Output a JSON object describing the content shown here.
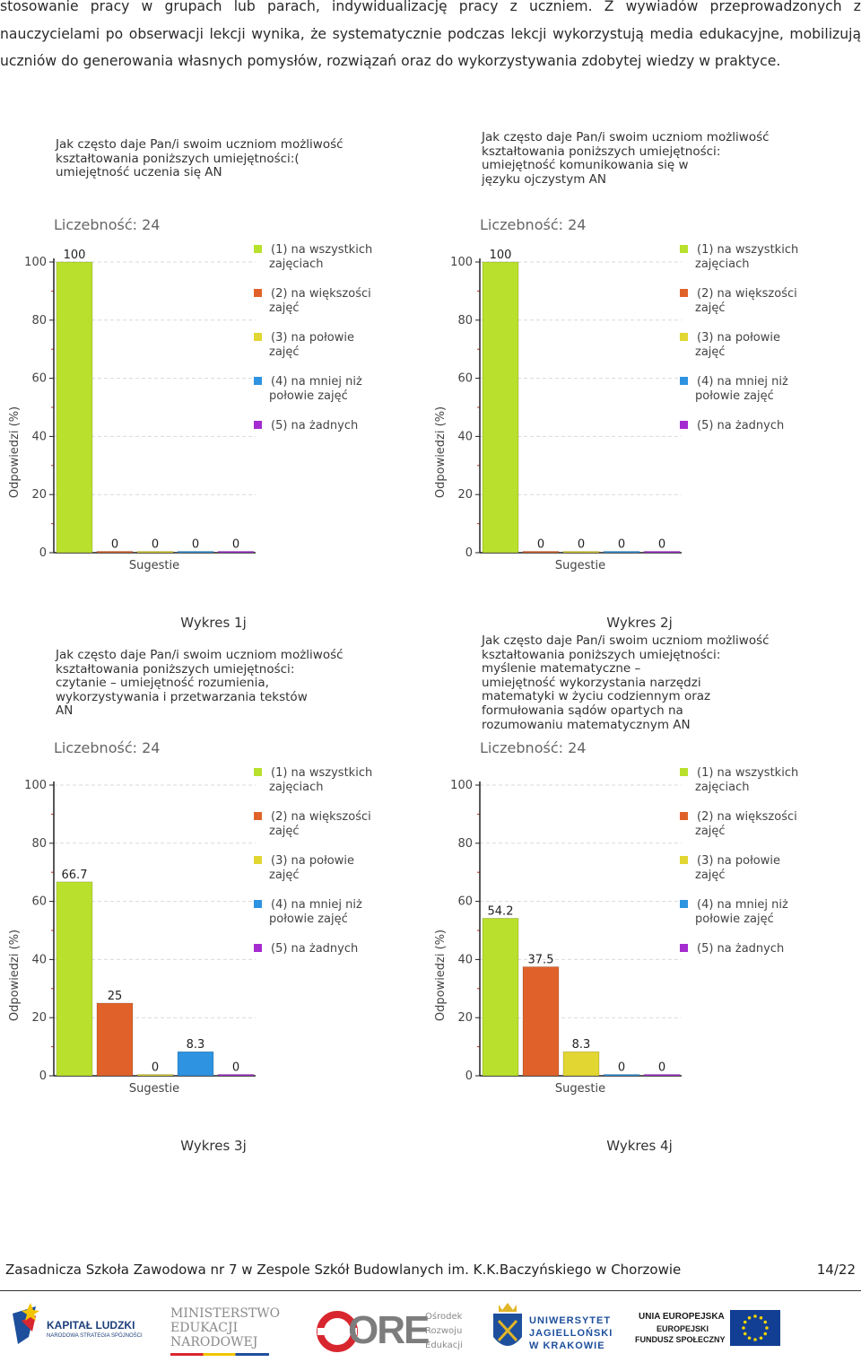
{
  "intro": {
    "text": "stosowanie pracy w grupach lub parach, indywidualizację pracy z uczniem. Z wywiadów przeprowadzonych z nauczycielami po obserwacji lekcji wynika, że systematycznie podczas lekcji wykorzystują media edukacyjne, mobilizują uczniów do generowania własnych pomysłów, rozwiązań oraz do wykorzystywania zdobytej wiedzy w praktyce."
  },
  "legend": [
    {
      "label": "(1) na wszystkich\nzajęciach",
      "color": "#b9e02c"
    },
    {
      "label": "(2) na większości\nzajęć",
      "color": "#e0622a"
    },
    {
      "label": "(3) na połowie\nzajęć",
      "color": "#e2d632"
    },
    {
      "label": "(4) na mniej niż\npołowie zajęć",
      "color": "#2e93e0"
    },
    {
      "label": "(5) na żadnych",
      "color": "#a52cd0"
    }
  ],
  "chart_data": [
    {
      "type": "bar",
      "title": "Jak często daje Pan/i swoim uczniom możliwość\nkształtowania poniższych umiejętności:(\numiejętność uczenia się AN",
      "count_label": "Liczebność: 24",
      "ylabel": "Odpowiedzi (%)",
      "xlabel": "Sugestie",
      "ylim": [
        0,
        100
      ],
      "yticks": [
        0,
        20,
        40,
        60,
        80,
        100
      ],
      "categories": [
        "(1)",
        "(2)",
        "(3)",
        "(4)",
        "(5)"
      ],
      "values": [
        100,
        0,
        0,
        0,
        0
      ],
      "value_labels": [
        "100",
        "0",
        "0",
        "0",
        "0"
      ],
      "caption": "Wykres 1j"
    },
    {
      "type": "bar",
      "title": "Jak często daje Pan/i swoim uczniom możliwość\nkształtowania poniższych umiejętności:\numiejętność komunikowania się w\njęzyku ojczystym AN",
      "count_label": "Liczebność: 24",
      "ylabel": "Odpowiedzi (%)",
      "xlabel": "Sugestie",
      "ylim": [
        0,
        100
      ],
      "yticks": [
        0,
        20,
        40,
        60,
        80,
        100
      ],
      "categories": [
        "(1)",
        "(2)",
        "(3)",
        "(4)",
        "(5)"
      ],
      "values": [
        100,
        0,
        0,
        0,
        0
      ],
      "value_labels": [
        "100",
        "0",
        "0",
        "0",
        "0"
      ],
      "caption": "Wykres 2j"
    },
    {
      "type": "bar",
      "title": "Jak często daje Pan/i swoim uczniom możliwość\nkształtowania poniższych umiejętności:\nczytanie – umiejętność rozumienia,\nwykorzystywania i przetwarzania tekstów\nAN",
      "count_label": "Liczebność: 24",
      "ylabel": "Odpowiedzi (%)",
      "xlabel": "Sugestie",
      "ylim": [
        0,
        100
      ],
      "yticks": [
        0,
        20,
        40,
        60,
        80,
        100
      ],
      "categories": [
        "(1)",
        "(2)",
        "(3)",
        "(4)",
        "(5)"
      ],
      "values": [
        66.7,
        25,
        0,
        8.3,
        0
      ],
      "value_labels": [
        "66.7",
        "25",
        "0",
        "8.3",
        "0"
      ],
      "caption": "Wykres 3j"
    },
    {
      "type": "bar",
      "title": "Jak często daje Pan/i swoim uczniom możliwość\nkształtowania poniższych umiejętności:\nmyślenie matematyczne –\numiejętność wykorzystania narzędzi\nmatematyki w życiu codziennym oraz\nformułowania sądów opartych na\nrozumowaniu matematycznym AN",
      "count_label": "Liczebność: 24",
      "ylabel": "Odpowiedzi (%)",
      "xlabel": "Sugestie",
      "ylim": [
        0,
        100
      ],
      "yticks": [
        0,
        20,
        40,
        60,
        80,
        100
      ],
      "categories": [
        "(1)",
        "(2)",
        "(3)",
        "(4)",
        "(5)"
      ],
      "values": [
        54.2,
        37.5,
        8.3,
        0,
        0
      ],
      "value_labels": [
        "54.2",
        "37.5",
        "8.3",
        "0",
        "0"
      ],
      "caption": "Wykres 4j"
    }
  ],
  "footer": {
    "school": "Zasadnicza Szkoła Zawodowa nr 7 w Zespole Szkół Budowlanych im. K.K.Baczyńskiego w Chorzowie",
    "page": "14/22"
  },
  "logos": {
    "kapital": "KAPITAŁ LUDZKI",
    "kapital_sub": "NARODOWA STRATEGIA SPÓJNOŚCI",
    "men_line1": "MINISTERSTWO",
    "men_line2": "EDUKACJI",
    "men_line3": "NARODOWEJ",
    "ore_word": "ORE",
    "ore_line1": "Ośrodek",
    "ore_line2": "Rozwoju",
    "ore_line3": "Edukacji",
    "uj_line1": "UNIWERSYTET",
    "uj_line2": "JAGIELLOŃSKI",
    "uj_line3": "W KRAKOWIE",
    "ue_line1": "UNIA EUROPEJSKA",
    "ue_line2": "EUROPEJSKI",
    "ue_line3": "FUNDUSZ SPOŁECZNY"
  }
}
